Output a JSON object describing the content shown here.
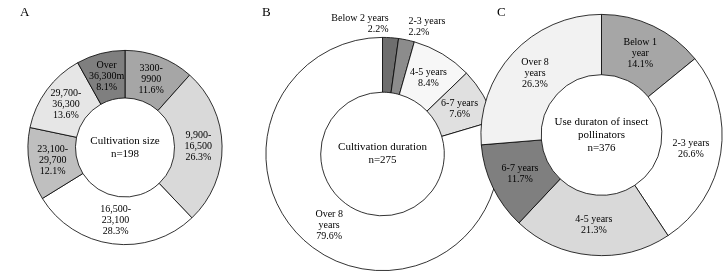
{
  "chart_data": [
    {
      "type": "doughnut",
      "panel_label": "A",
      "title": "Cultivation size",
      "subtitle": "n=198",
      "categories": [
        "3300-9900",
        "9,900-16,500",
        "16,500-23,100",
        "23,100-29,700",
        "29,700-36,300",
        "Over 36,300m"
      ],
      "values": [
        11.6,
        26.3,
        28.3,
        12.1,
        13.6,
        8.1
      ],
      "value_labels": [
        "11.6%",
        "26.3%",
        "28.3%",
        "12.1%",
        "13.6%",
        "8.1%"
      ],
      "colors": [
        "#a6a6a6",
        "#d9d9d9",
        "#ffffff",
        "#bfbfbf",
        "#e6e6e6",
        "#7f7f7f"
      ],
      "data_labels": true
    },
    {
      "type": "doughnut",
      "panel_label": "B",
      "title": "Cultivation duration",
      "subtitle": "n=275",
      "categories": [
        "Below 2 years",
        "2-3 years",
        "4-5 years",
        "6-7 years",
        "Over 8 years"
      ],
      "values": [
        2.2,
        2.2,
        8.4,
        7.6,
        79.6
      ],
      "value_labels": [
        "2.2%",
        "2.2%",
        "8.4%",
        "7.6%",
        "79.6%"
      ],
      "colors": [
        "#6e6e6e",
        "#8c8c8c",
        "#f7f7f7",
        "#e0e0e0",
        "#ffffff"
      ],
      "data_labels": true
    },
    {
      "type": "doughnut",
      "panel_label": "C",
      "title": "Use duraton of insect pollinators",
      "subtitle": "n=376",
      "categories": [
        "Below 1 year",
        "2-3 years",
        "4-5 years",
        "6-7 years",
        "Over 8 years"
      ],
      "values": [
        14.1,
        26.6,
        21.3,
        11.7,
        26.3
      ],
      "value_labels": [
        "14.1%",
        "26.6%",
        "21.3%",
        "11.7%",
        "26.3%"
      ],
      "colors": [
        "#a6a6a6",
        "#ffffff",
        "#d9d9d9",
        "#7f7f7f",
        "#f2f2f2"
      ],
      "data_labels": true
    }
  ]
}
